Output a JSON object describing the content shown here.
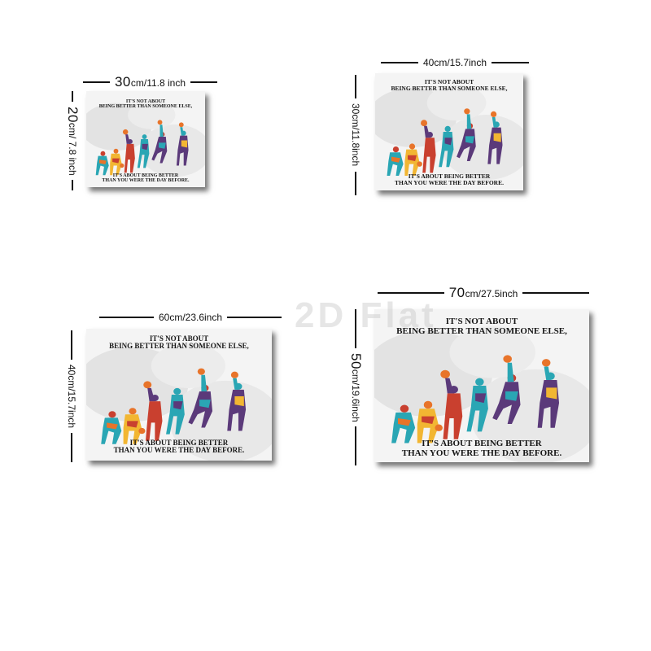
{
  "watermark": "2D Flat",
  "sizes": [
    {
      "w_num": "30",
      "w_unit": "cm/11.8 inch",
      "h_num": "20",
      "h_unit": "cm/ 7.8 inch"
    },
    {
      "w_num": "40cm/15.7inch",
      "w_unit": "",
      "h_num": "30cm/11.8inch",
      "h_unit": ""
    },
    {
      "w_num": "60cm/23.6inch",
      "w_unit": "",
      "h_num": "40cm/15.7inch",
      "h_unit": ""
    },
    {
      "w_num": "70",
      "w_unit": "cm/27.5inch",
      "h_num": "50",
      "h_unit": "cm/19.6inch"
    }
  ],
  "poster": {
    "quote_top_1": "IT'S NOT ABOUT",
    "quote_top_2": "BEING BETTER THAN SOMEONE ELSE,",
    "quote_bottom_1": "IT'S ABOUT BEING BETTER",
    "quote_bottom_2": "THAN YOU WERE THE DAY BEFORE.",
    "colors": {
      "teal": "#2aa6b4",
      "orange": "#e8742a",
      "purple": "#5b3a7a",
      "yellow": "#f2b632",
      "red": "#c9402f"
    }
  }
}
